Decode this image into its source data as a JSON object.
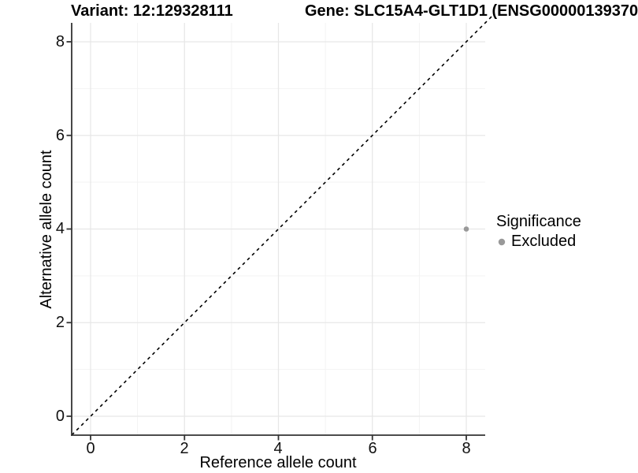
{
  "header": {
    "variant_title": "Variant: 12:129328111",
    "gene_title": "Gene: SLC15A4-GLT1D1 (ENSG00000139370"
  },
  "chart_data": {
    "type": "scatter",
    "title_left": "Variant: 12:129328111",
    "title_right": "Gene: SLC15A4-GLT1D1 (ENSG00000139370",
    "xlabel": "Reference allele count",
    "ylabel": "Alternative allele count",
    "xlim": [
      -0.4,
      8.4
    ],
    "ylim": [
      -0.4,
      8.4
    ],
    "x_ticks": [
      0,
      2,
      4,
      6,
      8
    ],
    "y_ticks": [
      0,
      2,
      4,
      6,
      8
    ],
    "x_tick_labels": [
      "0",
      "2",
      "4",
      "6",
      "8"
    ],
    "y_tick_labels": [
      "0",
      "2",
      "4",
      "6",
      "8"
    ],
    "grid": {
      "major": true,
      "minor": true,
      "major_color": "#e7e7e7",
      "minor_color": "#f3f3f3"
    },
    "points": [
      {
        "x": 8,
        "y": 4,
        "series": "Excluded",
        "color": "#999999",
        "radius": 3.3
      }
    ],
    "reference_line": {
      "type": "abline",
      "slope": 1,
      "intercept": 0,
      "style": "dashed",
      "color": "#000000"
    },
    "legend": {
      "position": "right",
      "title": "Significance",
      "entries": [
        {
          "label": "Excluded",
          "color": "#999999"
        }
      ]
    },
    "colors": {
      "axis_line": "#333333",
      "text": "#000000",
      "background": "#ffffff"
    }
  }
}
